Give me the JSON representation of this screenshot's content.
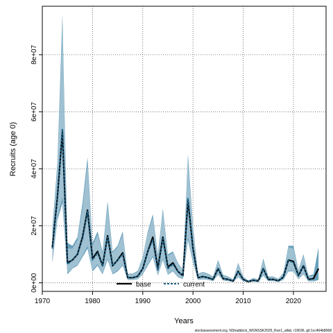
{
  "chart_data": {
    "type": "line",
    "xlabel": "Years",
    "ylabel": "Recruits (age 0)",
    "xlim": [
      1970,
      2026.5
    ],
    "ylim": [
      -3000000,
      97000000
    ],
    "x_ticks": [
      1970,
      1980,
      1990,
      2000,
      2010,
      2020
    ],
    "y_ticks": [
      0,
      20000000,
      40000000,
      60000000,
      80000000
    ],
    "y_tick_labels": [
      "0e+00",
      "2e+07",
      "4e+07",
      "6e+07",
      "8e+07"
    ],
    "grid": true,
    "legend": {
      "position": "bottom-center",
      "entries": [
        "base",
        "current"
      ]
    },
    "footnote": "stockassessment.org, NShaddock_WGNSSK2025_Run1_allsb, r19036, git:1cc464b8068",
    "series": [
      {
        "name": "base",
        "style": "solid",
        "color": "#000000",
        "band_color": "#4f90b0",
        "x": [
          1972,
          1973,
          1974,
          1975,
          1976,
          1977,
          1978,
          1979,
          1980,
          1981,
          1982,
          1983,
          1984,
          1985,
          1986,
          1987,
          1988,
          1989,
          1990,
          1991,
          1992,
          1993,
          1994,
          1995,
          1996,
          1997,
          1998,
          1999,
          2000,
          2001,
          2002,
          2003,
          2004,
          2005,
          2006,
          2007,
          2008,
          2009,
          2010,
          2011,
          2012,
          2013,
          2014,
          2015,
          2016,
          2017,
          2018,
          2019,
          2020,
          2021,
          2022,
          2023,
          2024,
          2025
        ],
        "y": [
          12500000,
          30000000,
          53000000,
          7000000,
          8000000,
          10000000,
          16000000,
          25500000,
          8500000,
          11000000,
          6000000,
          16500000,
          6000000,
          8000000,
          10500000,
          1800000,
          1800000,
          2300000,
          5000000,
          11000000,
          16000000,
          5000000,
          16000000,
          5500000,
          7000000,
          4000000,
          2500000,
          29000000,
          12000000,
          1800000,
          2200000,
          1800000,
          1200000,
          5000000,
          1500000,
          1200000,
          600000,
          4000000,
          1200000,
          400000,
          900000,
          600000,
          5000000,
          1200000,
          1200000,
          700000,
          2000000,
          8000000,
          7500000,
          2500000,
          6000000,
          1200000,
          1500000,
          5000000
        ],
        "lower": [
          7000000,
          22000000,
          28000000,
          3000000,
          5000000,
          6000000,
          9000000,
          12000000,
          4000000,
          6000000,
          3000000,
          8000000,
          3000000,
          4000000,
          6000000,
          1000000,
          1000000,
          1200000,
          3000000,
          6000000,
          9000000,
          2500000,
          8000000,
          2800000,
          4000000,
          2000000,
          1300000,
          15000000,
          7000000,
          1000000,
          1200000,
          1000000,
          600000,
          2800000,
          800000,
          600000,
          300000,
          2000000,
          600000,
          200000,
          400000,
          300000,
          2500000,
          600000,
          600000,
          300000,
          1000000,
          4000000,
          4000000,
          1200000,
          3000000,
          500000,
          500000,
          1000000
        ],
        "upper": [
          19000000,
          42000000,
          94000000,
          14000000,
          13000000,
          16000000,
          28000000,
          44000000,
          14000000,
          18000000,
          11000000,
          28500000,
          11000000,
          13000000,
          18000000,
          3200000,
          3200000,
          4200000,
          9000000,
          18000000,
          24000000,
          10000000,
          26000000,
          10000000,
          11000000,
          7000000,
          4500000,
          45000000,
          20000000,
          3200000,
          3800000,
          3200000,
          2200000,
          8000000,
          2800000,
          2200000,
          1200000,
          7000000,
          2200000,
          800000,
          1700000,
          1200000,
          8500000,
          2200000,
          2200000,
          1400000,
          3500000,
          13000000,
          13000000,
          4500000,
          10000000,
          2500000,
          3000000,
          12500000
        ]
      },
      {
        "name": "current",
        "style": "dashed",
        "color": "#1a5f85",
        "band_color": "#b6cfdb",
        "x": [
          1972,
          1973,
          1974,
          1975,
          1976,
          1977,
          1978,
          1979,
          1980,
          1981,
          1982,
          1983,
          1984,
          1985,
          1986,
          1987,
          1988,
          1989,
          1990,
          1991,
          1992,
          1993,
          1994,
          1995,
          1996,
          1997,
          1998,
          1999,
          2000,
          2001,
          2002,
          2003,
          2004,
          2005,
          2006,
          2007,
          2008,
          2009,
          2010,
          2011,
          2012,
          2013,
          2014,
          2015,
          2016,
          2017,
          2018,
          2019,
          2020,
          2021,
          2022,
          2023,
          2024
        ],
        "y": [
          12000000,
          30000000,
          54000000,
          6500000,
          8000000,
          10000000,
          15500000,
          25000000,
          8000000,
          10500000,
          6000000,
          16000000,
          6000000,
          8000000,
          10000000,
          1800000,
          1800000,
          2300000,
          5000000,
          11000000,
          15000000,
          4500000,
          15500000,
          5000000,
          6500000,
          4000000,
          2500000,
          29500000,
          11500000,
          1800000,
          2200000,
          1800000,
          1200000,
          5000000,
          1500000,
          1200000,
          600000,
          4000000,
          1200000,
          400000,
          900000,
          600000,
          5000000,
          1200000,
          1200000,
          700000,
          2000000,
          8000000,
          7000000,
          2500000,
          6000000,
          1200000,
          1200000
        ],
        "lower": [
          8000000,
          23000000,
          30000000,
          3500000,
          5200000,
          6300000,
          9500000,
          13000000,
          4500000,
          6500000,
          3300000,
          8500000,
          3300000,
          4300000,
          6300000,
          1100000,
          1100000,
          1300000,
          3200000,
          6500000,
          9500000,
          2700000,
          8500000,
          3000000,
          4200000,
          2200000,
          1400000,
          16000000,
          7300000,
          1100000,
          1300000,
          1100000,
          700000,
          3000000,
          900000,
          700000,
          350000,
          2200000,
          700000,
          250000,
          500000,
          350000,
          2700000,
          700000,
          700000,
          350000,
          1100000,
          4300000,
          4200000,
          1300000,
          3200000,
          600000,
          600000
        ],
        "upper": [
          17500000,
          40000000,
          90000000,
          12000000,
          12000000,
          15000000,
          26000000,
          42000000,
          13000000,
          17000000,
          10500000,
          27000000,
          10500000,
          12500000,
          17000000,
          3000000,
          3000000,
          4000000,
          8500000,
          17500000,
          23000000,
          9500000,
          25000000,
          9500000,
          10500000,
          6800000,
          4300000,
          43000000,
          19000000,
          3000000,
          3600000,
          3000000,
          2000000,
          7500000,
          2600000,
          2000000,
          1100000,
          6600000,
          2000000,
          750000,
          1600000,
          1100000,
          8000000,
          2000000,
          2000000,
          1300000,
          3300000,
          12500000,
          12000000,
          4200000,
          9500000,
          2300000,
          2300000
        ]
      }
    ]
  }
}
